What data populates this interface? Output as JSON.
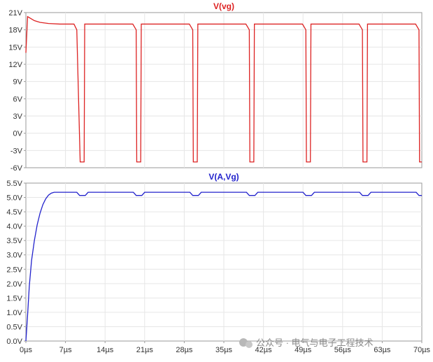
{
  "watermark": {
    "text": "公众号 · 电气与电子工程技术"
  },
  "chart_data": [
    {
      "type": "line",
      "title": "V(vg)",
      "xlabel": "",
      "ylabel": "",
      "xlim": [
        0,
        70
      ],
      "ylim": [
        -6,
        21
      ],
      "x_unit": "µs",
      "y_ticks": [
        "21V",
        "18V",
        "15V",
        "12V",
        "9V",
        "6V",
        "3V",
        "0V",
        "-3V",
        "-6V"
      ],
      "y_tick_values": [
        21,
        18,
        15,
        12,
        9,
        6,
        3,
        0,
        -3,
        -6
      ],
      "grid": true,
      "color": "#dd2222",
      "series": [
        {
          "name": "V(vg)",
          "x": [
            0,
            0.3,
            0.8,
            1.5,
            2.5,
            4,
            6,
            8.5,
            9.0,
            9.6,
            9.7,
            10.3,
            10.4,
            18.9,
            19.5,
            19.6,
            20.3,
            20.4,
            28.9,
            29.5,
            29.6,
            30.3,
            30.4,
            38.9,
            39.5,
            39.6,
            40.3,
            40.4,
            48.9,
            49.5,
            49.6,
            50.3,
            50.4,
            58.9,
            59.5,
            59.6,
            60.3,
            60.4,
            68.9,
            69.5,
            69.6,
            70
          ],
          "y": [
            14,
            20.3,
            20.0,
            19.6,
            19.3,
            19.1,
            19.0,
            19.0,
            18.0,
            -5.0,
            -5.0,
            -5.0,
            19.0,
            19.0,
            18.0,
            -5.0,
            -5.0,
            19.0,
            19.0,
            18.0,
            -5.0,
            -5.0,
            19.0,
            19.0,
            18.0,
            -5.0,
            -5.0,
            19.0,
            19.0,
            18.0,
            -5.0,
            -5.0,
            19.0,
            19.0,
            18.0,
            -5.0,
            -5.0,
            19.0,
            19.0,
            18.0,
            -5.0,
            -5.0
          ]
        }
      ]
    },
    {
      "type": "line",
      "title": "V(A,Vg)",
      "xlabel": "",
      "ylabel": "",
      "xlim": [
        0,
        70
      ],
      "ylim": [
        0,
        5.5
      ],
      "x_unit": "µs",
      "x_ticks": [
        "0µs",
        "7µs",
        "14µs",
        "21µs",
        "28µs",
        "35µs",
        "42µs",
        "49µs",
        "56µs",
        "63µs",
        "70µs"
      ],
      "x_tick_values": [
        0,
        7,
        14,
        21,
        28,
        35,
        42,
        49,
        56,
        63,
        70
      ],
      "y_ticks": [
        "5.5V",
        "5.0V",
        "4.5V",
        "4.0V",
        "3.5V",
        "3.0V",
        "2.5V",
        "2.0V",
        "1.5V",
        "1.0V",
        "0.5V",
        "0.0V"
      ],
      "y_tick_values": [
        5.5,
        5.0,
        4.5,
        4.0,
        3.5,
        3.0,
        2.5,
        2.0,
        1.5,
        1.0,
        0.5,
        0.0
      ],
      "grid": true,
      "color": "#2222cc",
      "series": [
        {
          "name": "V(A,Vg)",
          "x": [
            0,
            0.3,
            0.6,
            1.0,
            1.5,
            2.0,
            2.5,
            3.0,
            3.5,
            4.0,
            4.5,
            5.0,
            9.0,
            9.5,
            10.5,
            11.0,
            19.0,
            19.5,
            20.5,
            21.0,
            29.0,
            29.5,
            30.5,
            31.0,
            39.0,
            39.5,
            40.5,
            41.0,
            49.0,
            49.5,
            50.5,
            51.0,
            59.0,
            59.5,
            60.5,
            61.0,
            69.0,
            69.5,
            70
          ],
          "y": [
            0,
            0.9,
            1.9,
            2.8,
            3.5,
            4.05,
            4.45,
            4.75,
            4.95,
            5.08,
            5.15,
            5.18,
            5.18,
            5.07,
            5.07,
            5.18,
            5.18,
            5.07,
            5.07,
            5.18,
            5.18,
            5.07,
            5.07,
            5.18,
            5.18,
            5.07,
            5.07,
            5.18,
            5.18,
            5.07,
            5.07,
            5.18,
            5.18,
            5.07,
            5.07,
            5.18,
            5.18,
            5.07,
            5.07
          ]
        }
      ]
    }
  ]
}
